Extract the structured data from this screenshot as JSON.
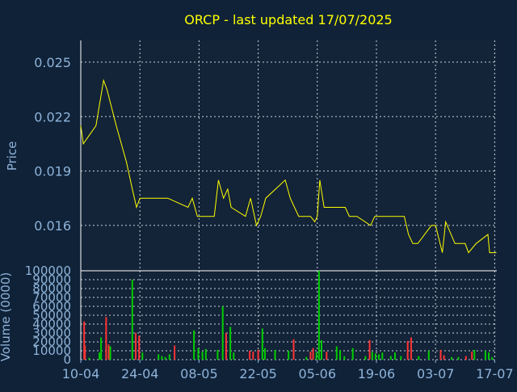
{
  "chart_data": [
    {
      "type": "line",
      "title": "ORCP - last updated 17/07/2025",
      "ylabel": "Price",
      "ylim": [
        0.0135,
        0.0262
      ],
      "y_ticks": [
        "0.025",
        "0.022",
        "0.019",
        "0.016"
      ],
      "y_tick_values": [
        0.025,
        0.022,
        0.019,
        0.016
      ],
      "x_ticks": [
        "10-04",
        "24-04",
        "08-05",
        "22-05",
        "05-06",
        "19-06",
        "03-07",
        "17-07"
      ],
      "x_tick_days": [
        0,
        14,
        28,
        42,
        56,
        70,
        84,
        98
      ],
      "x_range_days": [
        0,
        98.5
      ],
      "grid": true,
      "series": [
        {
          "color": "#ffff00",
          "points": [
            [
              0,
              0.0215
            ],
            [
              0.6,
              0.0205
            ],
            [
              3.6,
              0.0215
            ],
            [
              5.4,
              0.024
            ],
            [
              6.2,
              0.0235
            ],
            [
              8.4,
              0.0215
            ],
            [
              10.8,
              0.0195
            ],
            [
              12.2,
              0.018
            ],
            [
              13.2,
              0.017
            ],
            [
              14.0,
              0.0175
            ],
            [
              20.6,
              0.0175
            ],
            [
              25.4,
              0.017
            ],
            [
              26.4,
              0.0175
            ],
            [
              27.6,
              0.0165
            ],
            [
              31.6,
              0.0165
            ],
            [
              32.6,
              0.0185
            ],
            [
              33.8,
              0.0175
            ],
            [
              34.8,
              0.018
            ],
            [
              35.6,
              0.017
            ],
            [
              39.0,
              0.0165
            ],
            [
              40.2,
              0.0175
            ],
            [
              41.6,
              0.016
            ],
            [
              42.6,
              0.0165
            ],
            [
              43.8,
              0.0175
            ],
            [
              48.4,
              0.0185
            ],
            [
              49.6,
              0.0175
            ],
            [
              51.6,
              0.0165
            ],
            [
              54.4,
              0.0165
            ],
            [
              55.4,
              0.0162
            ],
            [
              56.0,
              0.0165
            ],
            [
              56.6,
              0.0185
            ],
            [
              57.6,
              0.017
            ],
            [
              62.6,
              0.017
            ],
            [
              63.6,
              0.0165
            ],
            [
              65.4,
              0.0165
            ],
            [
              68.6,
              0.016
            ],
            [
              69.6,
              0.0165
            ],
            [
              76.6,
              0.0165
            ],
            [
              77.6,
              0.0155
            ],
            [
              78.6,
              0.015
            ],
            [
              79.8,
              0.015
            ],
            [
              83.0,
              0.016
            ],
            [
              84.0,
              0.016
            ],
            [
              85.6,
              0.0145
            ],
            [
              86.4,
              0.0162
            ],
            [
              88.6,
              0.015
            ],
            [
              91.0,
              0.015
            ],
            [
              91.8,
              0.0145
            ],
            [
              93.6,
              0.015
            ],
            [
              96.4,
              0.0155
            ],
            [
              96.8,
              0.0145
            ],
            [
              98.4,
              0.0145
            ]
          ]
        }
      ]
    },
    {
      "type": "bar",
      "ylabel": "Volume (0000)",
      "ylim": [
        0,
        100000
      ],
      "y_ticks": [
        "100000",
        "90000",
        "80000",
        "70000",
        "60000",
        "50000",
        "40000",
        "30000",
        "20000",
        "10000",
        "0"
      ],
      "y_tick_values": [
        100000,
        90000,
        80000,
        70000,
        60000,
        50000,
        40000,
        30000,
        20000,
        10000,
        0
      ],
      "x_ticks": [
        "10-04",
        "24-04",
        "08-05",
        "22-05",
        "05-06",
        "19-06",
        "03-07",
        "17-07"
      ],
      "x_tick_days": [
        0,
        14,
        28,
        42,
        56,
        70,
        84,
        98
      ],
      "x_range_days": [
        0,
        98.5
      ],
      "grid": true,
      "up_color": "#00cc00",
      "down_color": "#ff3333",
      "bars": [
        {
          "day": 0.8,
          "value": 43000,
          "dir": "down"
        },
        {
          "day": 1.0,
          "value": 16000,
          "dir": "down"
        },
        {
          "day": 2.0,
          "value": 2000,
          "dir": "up"
        },
        {
          "day": 4.4,
          "value": 8000,
          "dir": "up"
        },
        {
          "day": 4.8,
          "value": 25000,
          "dir": "up"
        },
        {
          "day": 6.0,
          "value": 48000,
          "dir": "down"
        },
        {
          "day": 6.6,
          "value": 17000,
          "dir": "down"
        },
        {
          "day": 7.0,
          "value": 15000,
          "dir": "up"
        },
        {
          "day": 12.2,
          "value": 90000,
          "dir": "up"
        },
        {
          "day": 13.0,
          "value": 30000,
          "dir": "down"
        },
        {
          "day": 13.8,
          "value": 27000,
          "dir": "down"
        },
        {
          "day": 14.6,
          "value": 8000,
          "dir": "up"
        },
        {
          "day": 18.4,
          "value": 6000,
          "dir": "up"
        },
        {
          "day": 19.2,
          "value": 4000,
          "dir": "up"
        },
        {
          "day": 20.0,
          "value": 3000,
          "dir": "up"
        },
        {
          "day": 21.0,
          "value": 6000,
          "dir": "up"
        },
        {
          "day": 22.2,
          "value": 16000,
          "dir": "down"
        },
        {
          "day": 26.8,
          "value": 33000,
          "dir": "up"
        },
        {
          "day": 27.8,
          "value": 13000,
          "dir": "up"
        },
        {
          "day": 28.8,
          "value": 9000,
          "dir": "up"
        },
        {
          "day": 29.6,
          "value": 12000,
          "dir": "up"
        },
        {
          "day": 32.4,
          "value": 11000,
          "dir": "up"
        },
        {
          "day": 33.6,
          "value": 60000,
          "dir": "up"
        },
        {
          "day": 34.4,
          "value": 30000,
          "dir": "down"
        },
        {
          "day": 35.4,
          "value": 37000,
          "dir": "up"
        },
        {
          "day": 36.2,
          "value": 8000,
          "dir": "up"
        },
        {
          "day": 40.0,
          "value": 10000,
          "dir": "down"
        },
        {
          "day": 40.8,
          "value": 9000,
          "dir": "down"
        },
        {
          "day": 42.0,
          "value": 11000,
          "dir": "down"
        },
        {
          "day": 43.0,
          "value": 35000,
          "dir": "up"
        },
        {
          "day": 43.6,
          "value": 13000,
          "dir": "up"
        },
        {
          "day": 46.0,
          "value": 11000,
          "dir": "up"
        },
        {
          "day": 49.2,
          "value": 10000,
          "dir": "up"
        },
        {
          "day": 50.4,
          "value": 23000,
          "dir": "down"
        },
        {
          "day": 53.4,
          "value": 3000,
          "dir": "up"
        },
        {
          "day": 54.4,
          "value": 9000,
          "dir": "down"
        },
        {
          "day": 55.0,
          "value": 13000,
          "dir": "down"
        },
        {
          "day": 55.8,
          "value": 8000,
          "dir": "up"
        },
        {
          "day": 56.4,
          "value": 100000,
          "dir": "up"
        },
        {
          "day": 57.0,
          "value": 22000,
          "dir": "up"
        },
        {
          "day": 58.2,
          "value": 9000,
          "dir": "down"
        },
        {
          "day": 60.6,
          "value": 15000,
          "dir": "up"
        },
        {
          "day": 61.4,
          "value": 11000,
          "dir": "up"
        },
        {
          "day": 62.4,
          "value": 4000,
          "dir": "up"
        },
        {
          "day": 64.4,
          "value": 13000,
          "dir": "up"
        },
        {
          "day": 67.4,
          "value": 4000,
          "dir": "up"
        },
        {
          "day": 68.4,
          "value": 22000,
          "dir": "down"
        },
        {
          "day": 69.0,
          "value": 9000,
          "dir": "up"
        },
        {
          "day": 69.8,
          "value": 7000,
          "dir": "up"
        },
        {
          "day": 70.6,
          "value": 6000,
          "dir": "up"
        },
        {
          "day": 71.4,
          "value": 8000,
          "dir": "up"
        },
        {
          "day": 73.4,
          "value": 4000,
          "dir": "up"
        },
        {
          "day": 74.4,
          "value": 8000,
          "dir": "up"
        },
        {
          "day": 75.8,
          "value": 4000,
          "dir": "up"
        },
        {
          "day": 77.4,
          "value": 21000,
          "dir": "down"
        },
        {
          "day": 78.2,
          "value": 25000,
          "dir": "down"
        },
        {
          "day": 80.0,
          "value": 4000,
          "dir": "up"
        },
        {
          "day": 82.4,
          "value": 10000,
          "dir": "up"
        },
        {
          "day": 85.2,
          "value": 11000,
          "dir": "down"
        },
        {
          "day": 86.0,
          "value": 5000,
          "dir": "down"
        },
        {
          "day": 87.8,
          "value": 3000,
          "dir": "up"
        },
        {
          "day": 89.4,
          "value": 3000,
          "dir": "up"
        },
        {
          "day": 91.2,
          "value": 4000,
          "dir": "down"
        },
        {
          "day": 92.6,
          "value": 9000,
          "dir": "down"
        },
        {
          "day": 93.2,
          "value": 11000,
          "dir": "up"
        },
        {
          "day": 95.8,
          "value": 10000,
          "dir": "up"
        },
        {
          "day": 96.6,
          "value": 8000,
          "dir": "up"
        },
        {
          "day": 97.4,
          "value": 3000,
          "dir": "up"
        }
      ]
    }
  ],
  "colors": {
    "background": "#0f2238",
    "plot_background": "#132338",
    "axis_text": "#8fb3d9",
    "title_text": "#ffff00",
    "grid": "#c8d2dc",
    "price_line": "#ffff00"
  }
}
